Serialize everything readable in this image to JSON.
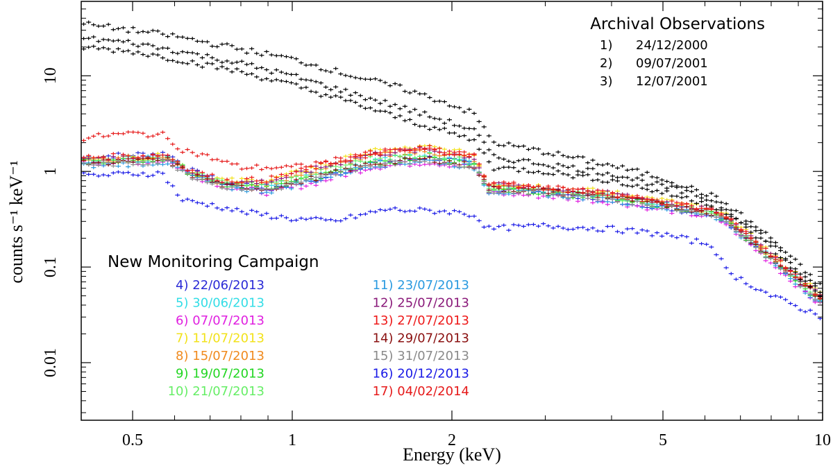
{
  "chart_data": {
    "type": "scatter",
    "title": "",
    "xlabel": "Energy (keV)",
    "ylabel": "counts s⁻¹ keV⁻¹",
    "xscale": "log",
    "yscale": "log",
    "xlim": [
      0.4,
      10
    ],
    "ylim": [
      0.0025,
      60
    ],
    "grid": false,
    "x_ticks": [
      {
        "value": 0.5,
        "label": "0.5"
      },
      {
        "value": 1,
        "label": "1"
      },
      {
        "value": 2,
        "label": "2"
      },
      {
        "value": 5,
        "label": "5"
      },
      {
        "value": 10,
        "label": "10"
      }
    ],
    "y_ticks": [
      {
        "value": 10,
        "label": "10"
      },
      {
        "value": 1,
        "label": "1"
      },
      {
        "value": 0.1,
        "label": "0.1"
      },
      {
        "value": 0.01,
        "label": "0.01"
      }
    ],
    "archival_legend": {
      "title": "Archival Observations",
      "entries": [
        {
          "label": "1)",
          "date": "24/12/2000"
        },
        {
          "label": "2)",
          "date": "09/07/2001"
        },
        {
          "label": "3)",
          "date": "12/07/2001"
        }
      ]
    },
    "monitoring_legend": {
      "title": "New Monitoring Campaign",
      "entries": [
        {
          "text": "4) 22/06/2013",
          "color": "#2a2ad6"
        },
        {
          "text": "5) 30/06/2013",
          "color": "#33dde6"
        },
        {
          "text": "6) 07/07/2013",
          "color": "#e020e0"
        },
        {
          "text": "7) 11/07/2013",
          "color": "#f2e21a"
        },
        {
          "text": "8) 15/07/2013",
          "color": "#f08a1e"
        },
        {
          "text": "9) 19/07/2013",
          "color": "#22d622"
        },
        {
          "text": "10) 21/07/2013",
          "color": "#66ee66"
        },
        {
          "text": "11) 23/07/2013",
          "color": "#2a9ae0"
        },
        {
          "text": "12) 25/07/2013",
          "color": "#8a1a7a"
        },
        {
          "text": "13) 27/07/2013",
          "color": "#ee1a1a"
        },
        {
          "text": "14) 29/07/2013",
          "color": "#8a1010"
        },
        {
          "text": "15) 31/07/2013",
          "color": "#8a8a8a"
        },
        {
          "text": "16) 20/12/2013",
          "color": "#1a1ae6"
        },
        {
          "text": "17) 04/02/2014",
          "color": "#e61a1a"
        }
      ]
    },
    "series": [
      {
        "name": "1) 24/12/2000",
        "color": "#000000",
        "x": [
          0.4,
          0.5,
          0.6,
          0.8,
          1.0,
          1.3,
          1.6,
          2.0,
          2.2,
          2.4,
          3.0,
          4.0,
          5.0,
          6.2,
          6.6,
          8.0,
          10.0
        ],
        "y": [
          35,
          30,
          26,
          19,
          15,
          10,
          7.5,
          5.0,
          4.0,
          2.0,
          1.6,
          1.15,
          0.85,
          0.55,
          0.45,
          0.2,
          0.06
        ]
      },
      {
        "name": "2) 09/07/2001",
        "color": "#000000",
        "x": [
          0.4,
          0.5,
          0.6,
          0.8,
          1.0,
          1.3,
          1.6,
          2.0,
          2.2,
          2.4,
          3.0,
          4.0,
          5.0,
          6.2,
          6.6,
          8.0,
          10.0
        ],
        "y": [
          25,
          22,
          18.5,
          13.5,
          10,
          6.5,
          4.7,
          3.2,
          2.7,
          1.4,
          1.2,
          0.95,
          0.7,
          0.5,
          0.4,
          0.18,
          0.05
        ]
      },
      {
        "name": "3) 12/07/2001",
        "color": "#000000",
        "x": [
          0.4,
          0.5,
          0.6,
          0.8,
          1.0,
          1.3,
          1.6,
          2.0,
          2.2,
          2.4,
          3.0,
          4.0,
          5.0,
          6.2,
          6.6,
          8.0,
          10.0
        ],
        "y": [
          20,
          18,
          15,
          11,
          8,
          5.2,
          3.6,
          2.5,
          2.1,
          1.1,
          1.0,
          0.8,
          0.6,
          0.45,
          0.36,
          0.16,
          0.045
        ]
      },
      {
        "name": "4) 22/06/2013",
        "color": "#2a2ad6",
        "x": [
          0.4,
          0.5,
          0.58,
          0.65,
          0.75,
          0.9,
          1.1,
          1.4,
          1.8,
          2.2,
          2.35,
          3.0,
          4.0,
          5.0,
          6.2,
          6.6,
          8.0,
          10.0
        ],
        "y": [
          1.4,
          1.5,
          1.55,
          1.0,
          0.75,
          0.65,
          0.8,
          1.2,
          1.4,
          1.2,
          0.65,
          0.6,
          0.5,
          0.42,
          0.35,
          0.3,
          0.12,
          0.04
        ]
      },
      {
        "name": "5) 30/06/2013",
        "color": "#33dde6",
        "x": [
          0.4,
          0.5,
          0.58,
          0.65,
          0.75,
          0.9,
          1.1,
          1.4,
          1.8,
          2.2,
          2.35,
          3.0,
          4.0,
          5.0,
          6.2,
          6.6,
          8.0,
          10.0
        ],
        "y": [
          1.3,
          1.35,
          1.4,
          0.95,
          0.72,
          0.7,
          0.9,
          1.3,
          1.5,
          1.3,
          0.7,
          0.65,
          0.55,
          0.45,
          0.37,
          0.31,
          0.13,
          0.045
        ]
      },
      {
        "name": "6) 07/07/2013",
        "color": "#e020e0",
        "x": [
          0.4,
          0.5,
          0.58,
          0.65,
          0.75,
          0.9,
          1.1,
          1.4,
          1.8,
          2.2,
          2.35,
          3.0,
          4.0,
          5.0,
          6.2,
          6.6,
          8.0,
          10.0
        ],
        "y": [
          1.2,
          1.25,
          1.3,
          0.9,
          0.7,
          0.6,
          0.75,
          1.1,
          1.25,
          1.1,
          0.6,
          0.55,
          0.48,
          0.4,
          0.33,
          0.28,
          0.11,
          0.038
        ]
      },
      {
        "name": "7) 11/07/2013",
        "color": "#f2e21a",
        "x": [
          0.4,
          0.5,
          0.58,
          0.65,
          0.75,
          0.9,
          1.1,
          1.4,
          1.8,
          2.2,
          2.35,
          3.0,
          4.0,
          5.0,
          6.2,
          6.6,
          8.0,
          10.0
        ],
        "y": [
          1.35,
          1.4,
          1.45,
          1.0,
          0.8,
          0.8,
          1.1,
          1.6,
          1.8,
          1.5,
          0.75,
          0.7,
          0.6,
          0.5,
          0.4,
          0.34,
          0.14,
          0.05
        ]
      },
      {
        "name": "8) 15/07/2013",
        "color": "#f08a1e",
        "x": [
          0.4,
          0.5,
          0.58,
          0.65,
          0.75,
          0.9,
          1.1,
          1.4,
          1.8,
          2.2,
          2.35,
          3.0,
          4.0,
          5.0,
          6.2,
          6.6,
          8.0,
          10.0
        ],
        "y": [
          1.3,
          1.35,
          1.4,
          0.95,
          0.75,
          0.75,
          1.0,
          1.45,
          1.6,
          1.35,
          0.7,
          0.65,
          0.56,
          0.47,
          0.38,
          0.32,
          0.13,
          0.046
        ]
      },
      {
        "name": "9) 19/07/2013",
        "color": "#22d622",
        "x": [
          0.4,
          0.5,
          0.58,
          0.65,
          0.75,
          0.9,
          1.1,
          1.4,
          1.8,
          2.2,
          2.35,
          3.0,
          4.0,
          5.0,
          6.2,
          6.6,
          8.0,
          10.0
        ],
        "y": [
          1.25,
          1.3,
          1.35,
          0.92,
          0.72,
          0.68,
          0.85,
          1.2,
          1.35,
          1.15,
          0.65,
          0.6,
          0.52,
          0.44,
          0.36,
          0.3,
          0.12,
          0.042
        ]
      },
      {
        "name": "10) 21/07/2013",
        "color": "#66ee66",
        "x": [
          0.4,
          0.5,
          0.58,
          0.65,
          0.75,
          0.9,
          1.1,
          1.4,
          1.8,
          2.2,
          2.35,
          3.0,
          4.0,
          5.0,
          6.2,
          6.6,
          8.0,
          10.0
        ],
        "y": [
          1.28,
          1.32,
          1.38,
          0.95,
          0.74,
          0.72,
          0.95,
          1.35,
          1.5,
          1.25,
          0.68,
          0.62,
          0.54,
          0.45,
          0.37,
          0.31,
          0.125,
          0.044
        ]
      },
      {
        "name": "11) 23/07/2013",
        "color": "#2a9ae0",
        "x": [
          0.4,
          0.5,
          0.58,
          0.65,
          0.75,
          0.9,
          1.1,
          1.4,
          1.8,
          2.2,
          2.35,
          3.0,
          4.0,
          5.0,
          6.2,
          6.6,
          8.0,
          10.0
        ],
        "y": [
          1.15,
          1.2,
          1.25,
          0.88,
          0.68,
          0.62,
          0.8,
          1.15,
          1.3,
          1.1,
          0.62,
          0.58,
          0.5,
          0.42,
          0.35,
          0.29,
          0.115,
          0.04
        ]
      },
      {
        "name": "12) 25/07/2013",
        "color": "#8a1a7a",
        "x": [
          0.4,
          0.5,
          0.58,
          0.65,
          0.75,
          0.9,
          1.1,
          1.4,
          1.8,
          2.2,
          2.35,
          3.0,
          4.0,
          5.0,
          6.2,
          6.6,
          8.0,
          10.0
        ],
        "y": [
          1.3,
          1.38,
          1.42,
          0.98,
          0.76,
          0.78,
          1.05,
          1.5,
          1.7,
          1.4,
          0.72,
          0.67,
          0.58,
          0.48,
          0.39,
          0.33,
          0.135,
          0.048
        ]
      },
      {
        "name": "13) 27/07/2013",
        "color": "#ee1a1a",
        "x": [
          0.4,
          0.5,
          0.58,
          0.65,
          0.75,
          0.9,
          1.1,
          1.4,
          1.8,
          2.2,
          2.35,
          3.0,
          4.0,
          5.0,
          6.2,
          6.6,
          8.0,
          10.0
        ],
        "y": [
          1.4,
          1.45,
          1.5,
          1.0,
          0.8,
          0.82,
          1.1,
          1.55,
          1.7,
          1.45,
          0.74,
          0.68,
          0.58,
          0.48,
          0.39,
          0.33,
          0.135,
          0.047
        ]
      },
      {
        "name": "14) 29/07/2013",
        "color": "#8a1010",
        "x": [
          0.4,
          0.5,
          0.58,
          0.65,
          0.75,
          0.9,
          1.1,
          1.4,
          1.8,
          2.2,
          2.35,
          3.0,
          4.0,
          5.0,
          6.2,
          6.6,
          8.0,
          10.0
        ],
        "y": [
          1.22,
          1.28,
          1.32,
          0.9,
          0.7,
          0.66,
          0.85,
          1.2,
          1.35,
          1.15,
          0.66,
          0.62,
          0.54,
          0.45,
          0.37,
          0.31,
          0.125,
          0.044
        ]
      },
      {
        "name": "15) 31/07/2013",
        "color": "#8a8a8a",
        "x": [
          0.4,
          0.5,
          0.58,
          0.65,
          0.75,
          0.9,
          1.1,
          1.4,
          1.8,
          2.2,
          2.35,
          3.0,
          4.0,
          5.0,
          6.2,
          6.6,
          8.0,
          10.0
        ],
        "y": [
          1.18,
          1.22,
          1.28,
          0.88,
          0.69,
          0.64,
          0.82,
          1.18,
          1.32,
          1.12,
          0.64,
          0.6,
          0.52,
          0.43,
          0.36,
          0.3,
          0.12,
          0.042
        ]
      },
      {
        "name": "16) 20/12/2013",
        "color": "#1a1ae6",
        "x": [
          0.4,
          0.45,
          0.5,
          0.57,
          0.62,
          0.7,
          0.8,
          1.0,
          1.2,
          1.5,
          2.0,
          2.2,
          2.35,
          2.6,
          3.0,
          4.0,
          5.0,
          6.2,
          6.6,
          8.0,
          10.0
        ],
        "y": [
          0.9,
          0.92,
          0.95,
          0.95,
          0.5,
          0.45,
          0.38,
          0.32,
          0.3,
          0.4,
          0.38,
          0.35,
          0.25,
          0.26,
          0.27,
          0.25,
          0.22,
          0.17,
          0.09,
          0.05,
          0.03
        ]
      },
      {
        "name": "17) 04/02/2014",
        "color": "#e61a1a",
        "x": [
          0.4,
          0.45,
          0.5,
          0.57,
          0.62,
          0.7,
          0.8,
          1.0,
          1.2,
          1.5,
          1.8,
          2.2,
          2.35,
          3.0,
          4.0,
          5.0,
          6.2,
          6.6,
          8.0,
          10.0
        ],
        "y": [
          2.2,
          2.4,
          2.5,
          2.4,
          1.7,
          1.4,
          1.1,
          1.1,
          1.3,
          1.6,
          1.75,
          1.45,
          0.75,
          0.68,
          0.58,
          0.48,
          0.39,
          0.33,
          0.135,
          0.047
        ]
      }
    ]
  }
}
